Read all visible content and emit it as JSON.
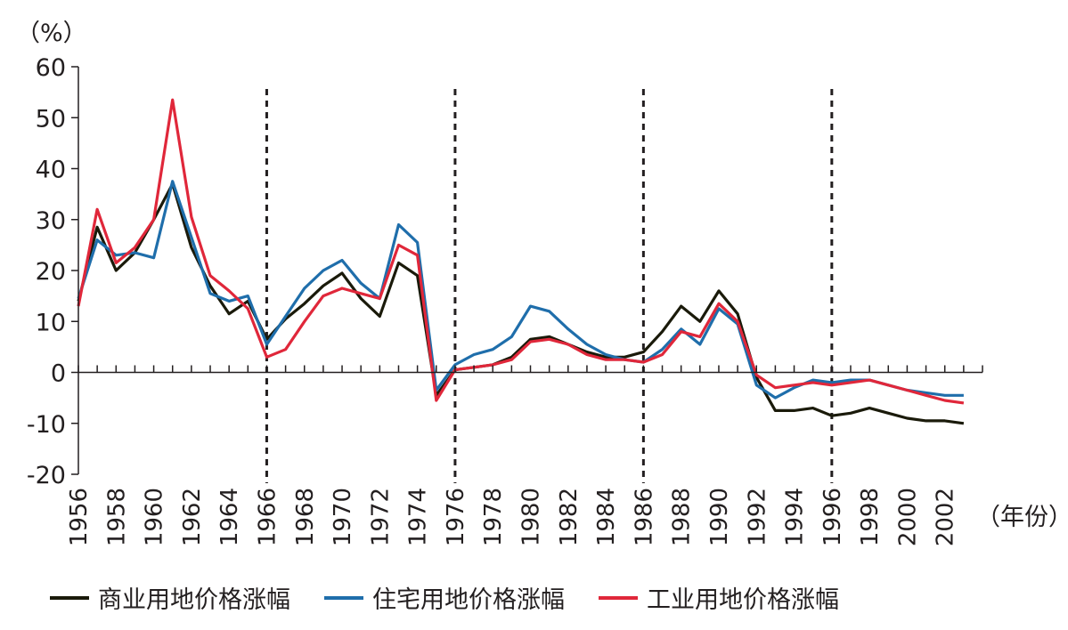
{
  "chart_data": {
    "type": "line",
    "unit_label": "（%）",
    "xlabel": "（年份）",
    "ylim": [
      -20,
      60
    ],
    "yticks": [
      60,
      50,
      40,
      30,
      20,
      10,
      0,
      -10,
      -20
    ],
    "xtick_labels": [
      "1956",
      "1958",
      "1960",
      "1962",
      "1964",
      "1966",
      "1968",
      "1970",
      "1972",
      "1974",
      "1976",
      "1978",
      "1980",
      "1982",
      "1984",
      "1986",
      "1988",
      "1990",
      "1992",
      "1994",
      "1996",
      "1998",
      "2000",
      "2002"
    ],
    "vlines": [
      1966,
      1976,
      1986,
      1996
    ],
    "x": [
      1956,
      1957,
      1958,
      1959,
      1960,
      1961,
      1962,
      1963,
      1964,
      1965,
      1966,
      1967,
      1968,
      1969,
      1970,
      1971,
      1972,
      1973,
      1974,
      1975,
      1976,
      1977,
      1978,
      1979,
      1980,
      1981,
      1982,
      1983,
      1984,
      1985,
      1986,
      1987,
      1988,
      1989,
      1990,
      1991,
      1992,
      1993,
      1994,
      1995,
      1996,
      1997,
      1998,
      1999,
      2000,
      2001,
      2002,
      2003
    ],
    "series": [
      {
        "name": "商业用地价格涨幅",
        "color": "#1a1a0a",
        "values": [
          14,
          28.5,
          20,
          23.5,
          30,
          37,
          24.5,
          17,
          11.5,
          14,
          6.5,
          10.5,
          13.5,
          17,
          19.5,
          14.5,
          11,
          21.5,
          19,
          -4.5,
          0.5,
          1,
          1.5,
          3,
          6.5,
          7,
          5.5,
          4,
          3,
          3,
          4,
          8,
          13,
          10,
          16,
          11.5,
          -1,
          -7.5,
          -7.5,
          -7,
          -8.5,
          -8,
          -7,
          -8,
          -9,
          -9.5,
          -9.5,
          -10
        ]
      },
      {
        "name": "住宅用地价格涨幅",
        "color": "#1f6eab",
        "values": [
          14.5,
          26,
          23,
          23.5,
          22.5,
          37.5,
          26.5,
          15.5,
          14,
          15,
          5.5,
          11,
          16.5,
          20,
          22,
          17.5,
          14.5,
          29,
          25.5,
          -3.5,
          1.5,
          3.5,
          4.5,
          7,
          13,
          12,
          8.5,
          5.5,
          3.5,
          2.5,
          2,
          4.5,
          8.5,
          5.5,
          12.5,
          9.5,
          -2.5,
          -5,
          -3,
          -1.5,
          -2,
          -1.5,
          -1.5,
          -2.5,
          -3.5,
          -4,
          -4.5,
          -4.5
        ]
      },
      {
        "name": "工业用地价格涨幅",
        "color": "#e0273a",
        "values": [
          13,
          32,
          21.5,
          24.5,
          30,
          53.5,
          30.5,
          19,
          16,
          12.5,
          3,
          4.5,
          10,
          15,
          16.5,
          15.5,
          14.5,
          25,
          23,
          -5.5,
          0.5,
          1,
          1.5,
          2.5,
          6,
          6.5,
          5.5,
          3.5,
          2.5,
          2.5,
          2,
          3.5,
          8,
          7,
          13.5,
          10,
          -0.5,
          -3,
          -2.5,
          -2,
          -2.5,
          -2,
          -1.5,
          -2.5,
          -3.5,
          -4.5,
          -5.5,
          -6
        ]
      }
    ]
  }
}
